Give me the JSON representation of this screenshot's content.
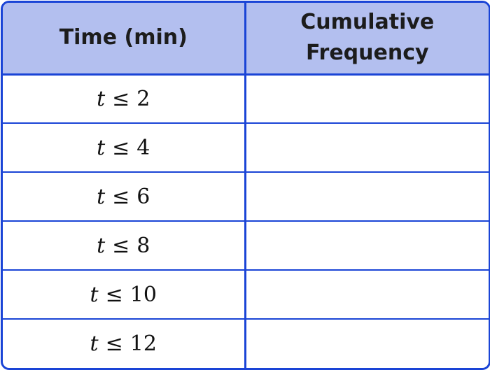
{
  "table": {
    "headers": {
      "time": "Time (min)",
      "cumulative_line1": "Cumulative",
      "cumulative_line2": "Frequency"
    },
    "rows": [
      {
        "variable": "t",
        "operator": "≤",
        "value": "2",
        "cumulative_frequency": ""
      },
      {
        "variable": "t",
        "operator": "≤",
        "value": "4",
        "cumulative_frequency": ""
      },
      {
        "variable": "t",
        "operator": "≤",
        "value": "6",
        "cumulative_frequency": ""
      },
      {
        "variable": "t",
        "operator": "≤",
        "value": "8",
        "cumulative_frequency": ""
      },
      {
        "variable": "t",
        "operator": "≤",
        "value": "10",
        "cumulative_frequency": ""
      },
      {
        "variable": "t",
        "operator": "≤",
        "value": "12",
        "cumulative_frequency": ""
      }
    ],
    "colors": {
      "border": "#1a44d6",
      "header_background": "#b3bfef"
    }
  }
}
